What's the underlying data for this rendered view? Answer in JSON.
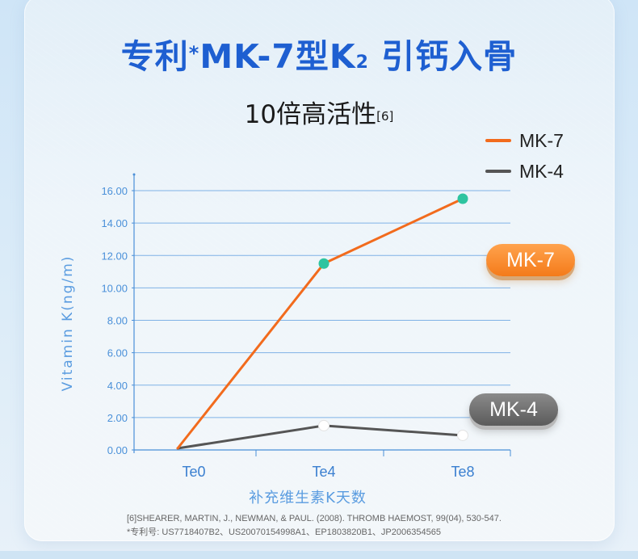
{
  "header": {
    "title_main": "专利",
    "title_mark": "*",
    "title_rest": "MK-7型K",
    "title_sub": "2",
    "title_tail": " 引钙入骨",
    "subtitle": "10倍高活性",
    "subtitle_ref": "[6]"
  },
  "badges": {
    "mk7": "MK-7",
    "mk4": "MK-4"
  },
  "footnotes": {
    "reference": "[6]SHEARER, MARTIN, J., NEWMAN, & PAUL. (2008). THROMB HAEMOST, 99(04), 530-547.",
    "patent": "*专利号: US7718407B2、US20070154998A1、EP1803820B1、JP2006354565"
  },
  "colors": {
    "title": "#1e5fd1",
    "mk7_line": "#f26b1d",
    "mk4_line": "#555555",
    "mk7_marker": "#2ec4a0",
    "mk4_marker": "#ffffff",
    "axis": "#4a8fd8",
    "grid": "#7fb2e6"
  },
  "chart_data": {
    "type": "line",
    "title": "10倍高活性",
    "xlabel": "补充维生素K天数",
    "ylabel": "Vitamin K(ng/m)",
    "categories": [
      "Te0",
      "Te4",
      "Te8"
    ],
    "ylim": [
      0,
      16
    ],
    "yticks": [
      "0.00",
      "2.00",
      "4.00",
      "6.00",
      "8.00",
      "10.00",
      "12.00",
      "14.00",
      "16.00"
    ],
    "grid": true,
    "legend_position": "top-right",
    "series": [
      {
        "name": "MK-7",
        "values": [
          0.1,
          11.5,
          15.5
        ],
        "color": "#f26b1d",
        "marker": "#2ec4a0"
      },
      {
        "name": "MK-4",
        "values": [
          0.1,
          1.5,
          0.9
        ],
        "color": "#555555",
        "marker": "#ffffff"
      }
    ]
  }
}
